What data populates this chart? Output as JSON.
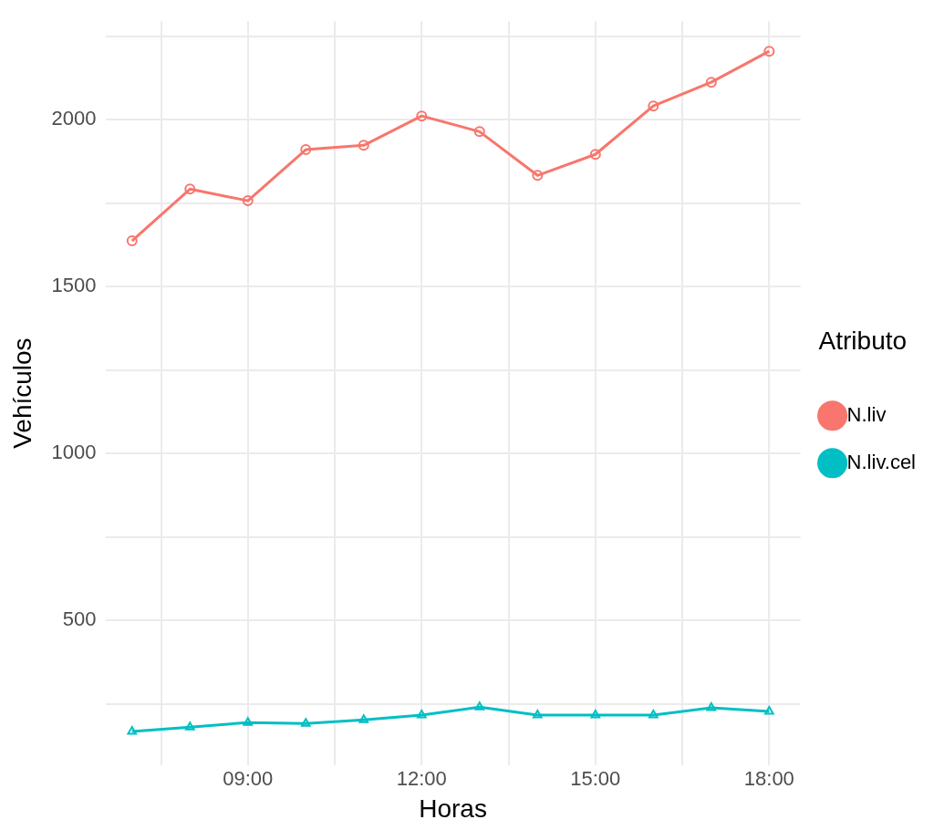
{
  "chart_data": {
    "type": "line",
    "xlabel": "Horas",
    "ylabel": "Vehículos",
    "legend_title": "Atributo",
    "legend": "right",
    "grid": true,
    "line_style": "solid",
    "x": [
      7,
      8,
      9,
      10,
      11,
      12,
      13,
      14,
      15,
      16,
      17,
      18
    ],
    "xlim": [
      6.54,
      18.54
    ],
    "xticks": [
      {
        "value": 7.5,
        "label": null
      },
      {
        "value": 9,
        "label": "09:00"
      },
      {
        "value": 10.5,
        "label": null
      },
      {
        "value": 12,
        "label": "12:00"
      },
      {
        "value": 13.5,
        "label": null
      },
      {
        "value": 15,
        "label": "15:00"
      },
      {
        "value": 16.5,
        "label": null
      },
      {
        "value": 18,
        "label": "18:00"
      }
    ],
    "ylim": [
      66,
      2295
    ],
    "yticks": [
      {
        "value": 250,
        "label": null
      },
      500,
      {
        "value": 750,
        "label": null
      },
      1000,
      {
        "value": 1250,
        "label": null
      },
      1500,
      {
        "value": 1750,
        "label": null
      },
      2000,
      {
        "value": 2250,
        "label": null
      }
    ],
    "series": [
      {
        "name": "N.liv",
        "color": "#f8766d",
        "marker": "circle",
        "values": [
          1637,
          1792,
          1757,
          1910,
          1923,
          2011,
          1964,
          1833,
          1896,
          2041,
          2112,
          2205
        ]
      },
      {
        "name": "N.liv.cel",
        "color": "#00bfc4",
        "marker": "triangle",
        "values": [
          167,
          180,
          194,
          191,
          202,
          216,
          240,
          216,
          216,
          216,
          238,
          227
        ]
      }
    ]
  }
}
